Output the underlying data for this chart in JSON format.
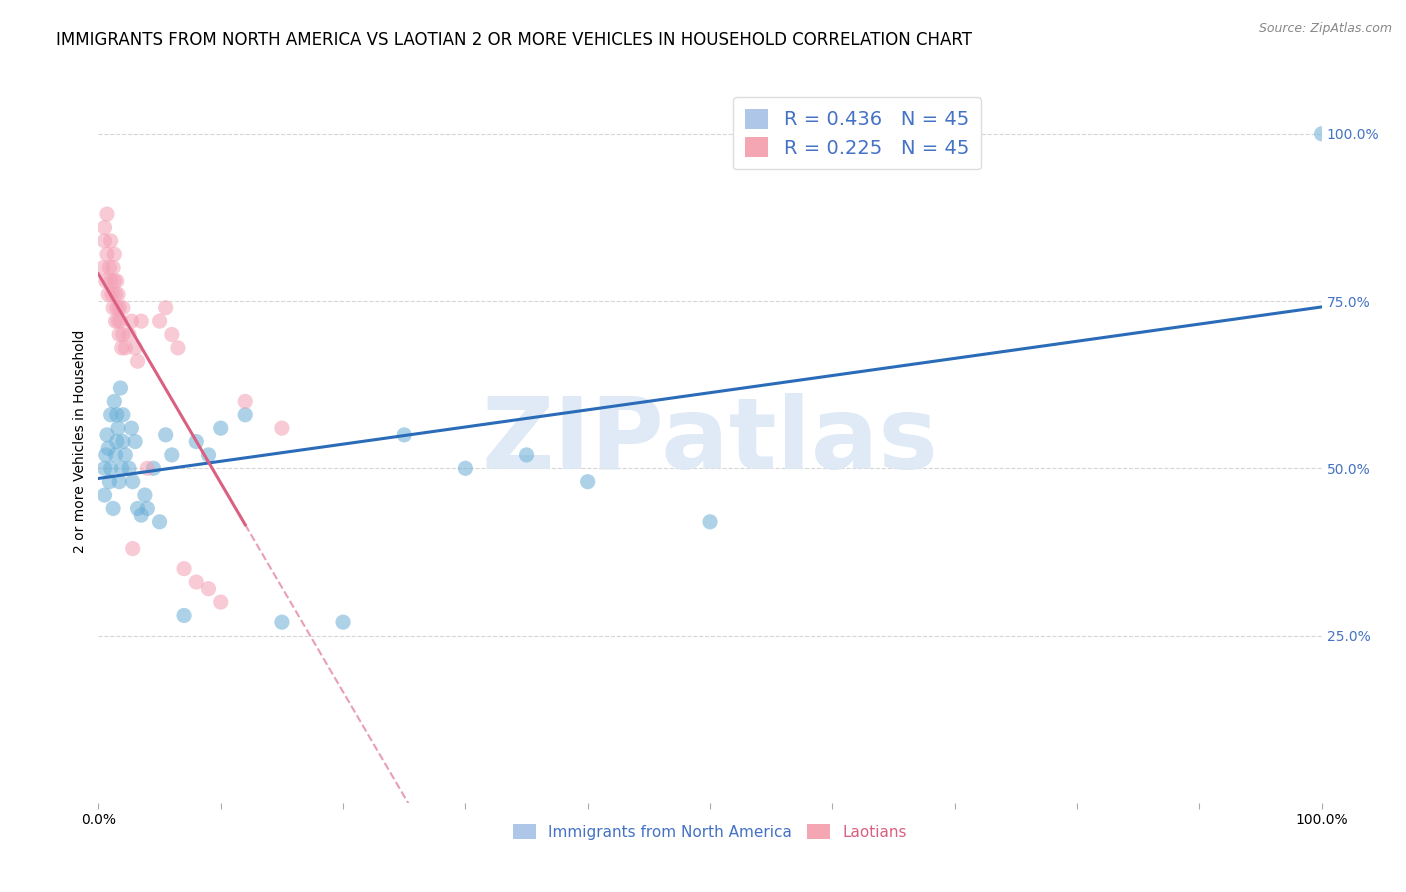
{
  "title": "IMMIGRANTS FROM NORTH AMERICA VS LAOTIAN 2 OR MORE VEHICLES IN HOUSEHOLD CORRELATION CHART",
  "source": "Source: ZipAtlas.com",
  "ylabel": "2 or more Vehicles in Household",
  "ytick_labels": [
    "25.0%",
    "50.0%",
    "75.0%",
    "100.0%"
  ],
  "ytick_values": [
    0.25,
    0.5,
    0.75,
    1.0
  ],
  "legend_entries": [
    {
      "label": "R = 0.436   N = 45",
      "color": "#aec6e8"
    },
    {
      "label": "R = 0.225   N = 45",
      "color": "#f4a7b2"
    }
  ],
  "legend_label_bottom": [
    "Immigrants from North America",
    "Laotians"
  ],
  "blue_color": "#6aaed6",
  "pink_color": "#f4a0b5",
  "blue_scatter_x": [
    0.005,
    0.005,
    0.006,
    0.007,
    0.008,
    0.009,
    0.01,
    0.01,
    0.012,
    0.013,
    0.014,
    0.015,
    0.015,
    0.016,
    0.017,
    0.018,
    0.019,
    0.02,
    0.02,
    0.022,
    0.025,
    0.027,
    0.028,
    0.03,
    0.032,
    0.035,
    0.038,
    0.04,
    0.045,
    0.05,
    0.055,
    0.06,
    0.07,
    0.08,
    0.09,
    0.1,
    0.12,
    0.15,
    0.2,
    0.25,
    0.3,
    0.35,
    0.4,
    0.5,
    1.0
  ],
  "blue_scatter_y": [
    0.5,
    0.46,
    0.52,
    0.55,
    0.53,
    0.48,
    0.5,
    0.58,
    0.44,
    0.6,
    0.52,
    0.54,
    0.58,
    0.56,
    0.48,
    0.62,
    0.5,
    0.54,
    0.58,
    0.52,
    0.5,
    0.56,
    0.48,
    0.54,
    0.44,
    0.43,
    0.46,
    0.44,
    0.5,
    0.42,
    0.55,
    0.52,
    0.28,
    0.54,
    0.52,
    0.56,
    0.58,
    0.27,
    0.27,
    0.55,
    0.5,
    0.52,
    0.48,
    0.42,
    1.0
  ],
  "pink_scatter_x": [
    0.004,
    0.005,
    0.005,
    0.006,
    0.007,
    0.007,
    0.008,
    0.009,
    0.01,
    0.01,
    0.011,
    0.012,
    0.012,
    0.013,
    0.013,
    0.014,
    0.014,
    0.015,
    0.015,
    0.016,
    0.016,
    0.017,
    0.017,
    0.018,
    0.019,
    0.02,
    0.02,
    0.022,
    0.025,
    0.027,
    0.028,
    0.03,
    0.032,
    0.035,
    0.04,
    0.05,
    0.055,
    0.06,
    0.065,
    0.07,
    0.08,
    0.09,
    0.1,
    0.12,
    0.15
  ],
  "pink_scatter_y": [
    0.8,
    0.84,
    0.86,
    0.78,
    0.82,
    0.88,
    0.76,
    0.8,
    0.78,
    0.84,
    0.76,
    0.8,
    0.74,
    0.78,
    0.82,
    0.76,
    0.72,
    0.74,
    0.78,
    0.72,
    0.76,
    0.7,
    0.74,
    0.72,
    0.68,
    0.7,
    0.74,
    0.68,
    0.7,
    0.72,
    0.38,
    0.68,
    0.66,
    0.72,
    0.5,
    0.72,
    0.74,
    0.7,
    0.68,
    0.35,
    0.33,
    0.32,
    0.3,
    0.6,
    0.56
  ],
  "blue_line_color": "#2b6cb8",
  "pink_line_color": "#d96080",
  "background_color": "#ffffff",
  "grid_color": "#cccccc",
  "title_fontsize": 12,
  "axis_label_fontsize": 10,
  "tick_fontsize": 10,
  "right_tick_color": "#4472c4",
  "watermark_color": "#dce8f5",
  "watermark_text": "ZIPatlas"
}
